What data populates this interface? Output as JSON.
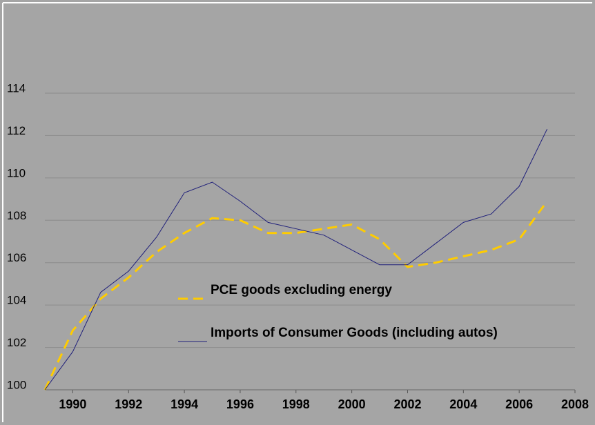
{
  "chart_data": {
    "type": "line",
    "x": [
      1989,
      1990,
      1991,
      1992,
      1993,
      1994,
      1995,
      1996,
      1997,
      1998,
      1999,
      2000,
      2001,
      2002,
      2003,
      2004,
      2005,
      2006,
      2007
    ],
    "series": [
      {
        "name": "PCE goods excluding energy",
        "color": "#ffcc00",
        "dash": true,
        "values": [
          100,
          102.8,
          104.3,
          105.3,
          106.5,
          107.4,
          108.1,
          108.0,
          107.4,
          107.4,
          107.6,
          107.8,
          107.1,
          105.8,
          106.0,
          106.3,
          106.6,
          107.1,
          108.9
        ]
      },
      {
        "name": "Imports of Consumer Goods (including autos)",
        "color": "#1f1f7a",
        "dash": false,
        "values": [
          100,
          101.8,
          104.6,
          105.6,
          107.2,
          109.3,
          109.8,
          108.9,
          107.9,
          107.6,
          107.3,
          106.6,
          105.9,
          105.9,
          106.9,
          107.9,
          108.3,
          109.6,
          112.3
        ]
      }
    ],
    "xlim": [
      1989,
      2008
    ],
    "xticks": [
      1990,
      1992,
      1994,
      1996,
      1998,
      2000,
      2002,
      2004,
      2006,
      2008
    ],
    "ylim": [
      100,
      114
    ],
    "yticks": [
      100,
      102,
      104,
      106,
      108,
      110,
      112,
      114
    ],
    "grid": true,
    "legend": "center"
  }
}
